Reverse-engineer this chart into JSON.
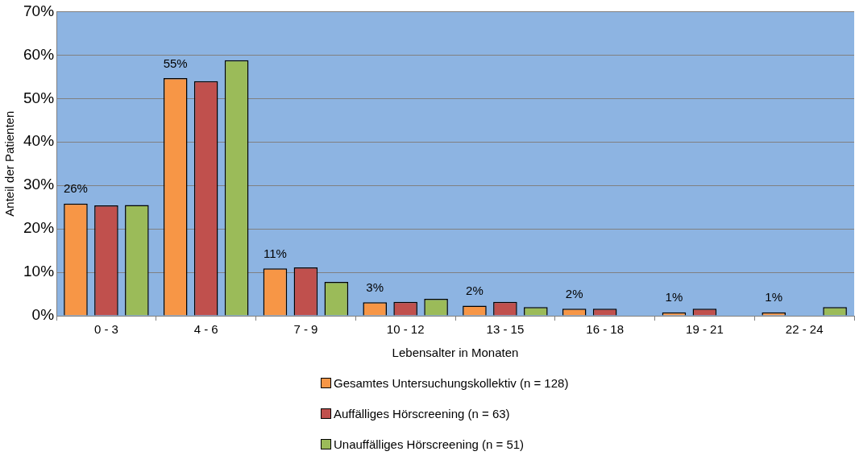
{
  "chart_data": {
    "type": "bar",
    "xlabel": "Lebensalter in Monaten",
    "ylabel": "Anteil der Patienten",
    "categories": [
      "0 - 3",
      "4 - 6",
      "7 - 9",
      "10 - 12",
      "13 - 15",
      "16 - 18",
      "19 - 21",
      "22 - 24"
    ],
    "series": [
      {
        "name": "Gesamtes Untersuchungskollektiv (n = 128)",
        "color": "#f79646",
        "values": [
          25.8,
          54.7,
          10.9,
          3.1,
          2.3,
          1.6,
          0.8,
          0.8
        ],
        "value_labels": [
          "26%",
          "55%",
          "11%",
          "3%",
          "2%",
          "2%",
          "1%",
          "1%"
        ]
      },
      {
        "name": "Auffälliges Hörscreening (n = 63)",
        "color": "#c0504d",
        "values": [
          25.4,
          54.0,
          11.1,
          3.2,
          3.2,
          1.6,
          1.6,
          0
        ]
      },
      {
        "name": "Unauffälliges Hörscreening (n = 51)",
        "color": "#9bbb59",
        "values": [
          25.5,
          58.8,
          7.8,
          3.9,
          2.0,
          0,
          0,
          2.0
        ]
      }
    ],
    "ylim": [
      0,
      70
    ],
    "yticks": [
      {
        "value": 0,
        "label": "0%"
      },
      {
        "value": 10,
        "label": "10%"
      },
      {
        "value": 20,
        "label": "20%"
      },
      {
        "value": 30,
        "label": "30%"
      },
      {
        "value": 40,
        "label": "40%"
      },
      {
        "value": 50,
        "label": "50%"
      },
      {
        "value": 60,
        "label": "60%"
      },
      {
        "value": 70,
        "label": "70%"
      }
    ],
    "grid": "y",
    "legend": "bottom"
  }
}
